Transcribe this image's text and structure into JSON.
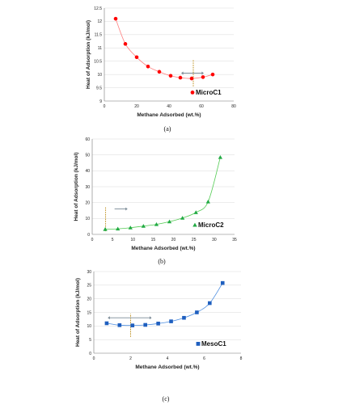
{
  "chart_data": [
    {
      "type": "scatter",
      "panel_label": "(a)",
      "xlabel": "Methane Adsorbed (wt.%)",
      "ylabel": "Heat of Adsorption (kJ/mol)",
      "xlim": [
        0,
        80
      ],
      "ylim": [
        9,
        12.5
      ],
      "xticks": [
        0,
        20,
        40,
        60,
        80
      ],
      "yticks": [
        9,
        9.5,
        10,
        10.5,
        11,
        11.5,
        12,
        12.5
      ],
      "ytick_labels": [
        "9",
        "9.5",
        "10",
        "10.5",
        "11",
        "11.5",
        "12",
        "12.5"
      ],
      "marker": "circle",
      "color": "#ff0000",
      "line_color": "#ff7f7f",
      "legend_position": "bottom-right",
      "series": [
        {
          "name": "MicroC1",
          "x": [
            7,
            13,
            20,
            27,
            34,
            41,
            47,
            54,
            61,
            67
          ],
          "y": [
            12.1,
            11.15,
            10.65,
            10.3,
            10.1,
            9.95,
            9.88,
            9.85,
            9.9,
            10.0
          ]
        }
      ],
      "annotation": {
        "dashed_marker_x": 55,
        "dashed_marker_ylim": [
          9.55,
          10.55
        ],
        "arrow_direction": "both",
        "arrow_x": [
          48,
          61
        ],
        "arrow_y": 10.05
      }
    },
    {
      "type": "scatter",
      "panel_label": "(b)",
      "xlabel": "Methane Adsorbed (wt.%)",
      "ylabel": "Heat of Adsorption (kJ/mol)",
      "xlim": [
        0,
        35
      ],
      "ylim": [
        0,
        60
      ],
      "xticks": [
        0,
        5,
        10,
        15,
        20,
        25,
        30,
        35
      ],
      "yticks": [
        0,
        10,
        20,
        30,
        40,
        50,
        60
      ],
      "ytick_labels": [
        "0",
        "10",
        "20",
        "30",
        "40",
        "50",
        "60"
      ],
      "marker": "triangle",
      "color": "#22aa44",
      "line_color": "#55cc55",
      "legend_position": "bottom-right",
      "series": [
        {
          "name": "MicroC2",
          "x": [
            3.2,
            6.3,
            9.4,
            12.6,
            15.8,
            19,
            22.2,
            25.5,
            28.5,
            31.5
          ],
          "y": [
            3.2,
            3.5,
            4.2,
            5.2,
            6.3,
            8,
            10.3,
            13.8,
            20.5,
            48.5
          ]
        }
      ],
      "annotation": {
        "dashed_marker_x": 3.3,
        "dashed_marker_ylim": [
          2,
          17
        ],
        "arrow_direction": "right",
        "arrow_x": [
          5.5,
          8.5
        ],
        "arrow_y": 16
      }
    },
    {
      "type": "scatter",
      "panel_label": "(c)",
      "xlabel": "Methane Adsorbed (wt.%)",
      "ylabel": "Heat of Adsorption (kJ/mol)",
      "xlim": [
        0,
        8
      ],
      "ylim": [
        0,
        30
      ],
      "xticks": [
        0,
        2,
        4,
        6,
        8
      ],
      "yticks": [
        0,
        5,
        10,
        15,
        20,
        25,
        30
      ],
      "ytick_labels": [
        "0",
        "5",
        "10",
        "15",
        "20",
        "25",
        "30"
      ],
      "marker": "square",
      "color": "#1f5fbf",
      "line_color": "#4f8fe0",
      "legend_position": "bottom-right",
      "series": [
        {
          "name": "MesoC1",
          "x": [
            0.7,
            1.4,
            2.1,
            2.8,
            3.5,
            4.2,
            4.9,
            5.6,
            6.3,
            7.0
          ],
          "y": [
            11.0,
            10.3,
            10.2,
            10.4,
            10.9,
            11.7,
            13.0,
            15.0,
            18.4,
            25.8
          ]
        }
      ],
      "annotation": {
        "dashed_marker_x": 2.0,
        "dashed_marker_ylim": [
          6,
          14.5
        ],
        "arrow_direction": "both",
        "arrow_x": [
          0.8,
          3.1
        ],
        "arrow_y": 13
      }
    }
  ]
}
